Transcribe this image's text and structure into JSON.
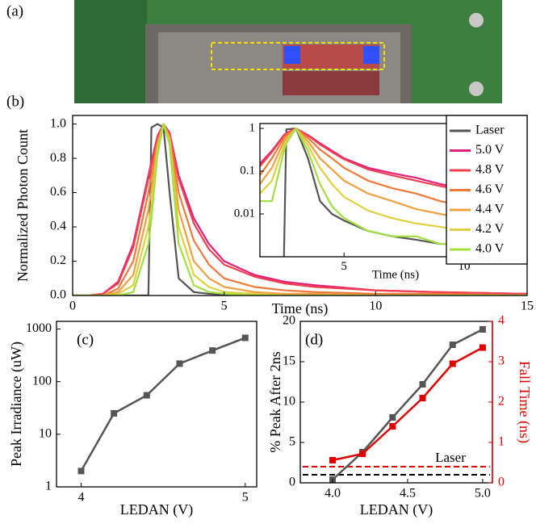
{
  "photo": {
    "panel_label": "(a)"
  },
  "chart_data": [
    {
      "type": "line",
      "panel_label": "(b)",
      "xlabel": "Time (ns)",
      "ylabel": "Normalized Photon Count",
      "xlim": [
        0,
        15
      ],
      "xticks": [
        0,
        5,
        10,
        15
      ],
      "ylim": [
        0,
        1.05
      ],
      "yticks": [
        {
          "value": 0,
          "label": "0.0"
        },
        {
          "value": 0.2,
          "label": "0.2"
        },
        {
          "value": 0.4,
          "label": "0.4"
        },
        {
          "value": 0.6,
          "label": "0.6"
        },
        {
          "value": 0.8,
          "label": "0.8"
        },
        {
          "value": 1,
          "label": "1.0"
        }
      ],
      "legend": "upper right",
      "x": [
        0,
        0.5,
        1,
        1.5,
        2,
        2.5,
        2.6,
        2.8,
        3,
        3.2,
        3.5,
        4,
        4.5,
        5,
        6,
        7,
        8,
        10,
        12,
        15
      ],
      "series": [
        {
          "name": "Laser",
          "color": "#555555",
          "values": [
            0,
            0,
            0,
            0,
            0,
            0,
            0.98,
            1.0,
            0.98,
            0.6,
            0.1,
            0.02,
            0.01,
            0.005,
            0,
            0,
            0,
            0,
            0,
            0
          ]
        },
        {
          "name": "5.0 V",
          "color": "#e0207a",
          "values": [
            0,
            0,
            0.01,
            0.08,
            0.3,
            0.7,
            0.78,
            0.93,
            1.0,
            0.95,
            0.7,
            0.45,
            0.3,
            0.2,
            0.12,
            0.08,
            0.06,
            0.03,
            0.02,
            0.01
          ]
        },
        {
          "name": "4.8 V",
          "color": "#f04050",
          "values": [
            0,
            0,
            0.01,
            0.07,
            0.28,
            0.68,
            0.76,
            0.92,
            1.0,
            0.94,
            0.68,
            0.42,
            0.27,
            0.18,
            0.11,
            0.07,
            0.05,
            0.03,
            0.02,
            0.01
          ]
        },
        {
          "name": "4.6 V",
          "color": "#f07838",
          "values": [
            0,
            0,
            0,
            0.04,
            0.2,
            0.6,
            0.7,
            0.9,
            1.0,
            0.93,
            0.6,
            0.32,
            0.18,
            0.1,
            0.05,
            0.03,
            0.02,
            0.01,
            0.01,
            0
          ]
        },
        {
          "name": "4.4 V",
          "color": "#f0a040",
          "values": [
            0,
            0,
            0,
            0.02,
            0.12,
            0.5,
            0.62,
            0.88,
            1.0,
            0.92,
            0.5,
            0.2,
            0.1,
            0.05,
            0.02,
            0.01,
            0.01,
            0,
            0,
            0
          ]
        },
        {
          "name": "4.2 V",
          "color": "#e0d040",
          "values": [
            0,
            0,
            0,
            0.01,
            0.06,
            0.4,
            0.52,
            0.85,
            1.0,
            0.9,
            0.4,
            0.12,
            0.05,
            0.02,
            0.01,
            0,
            0,
            0,
            0,
            0
          ]
        },
        {
          "name": "4.0 V",
          "color": "#a0e040",
          "values": [
            0,
            0,
            0,
            0,
            0.02,
            0.3,
            0.45,
            0.82,
            1.0,
            0.88,
            0.3,
            0.06,
            0.02,
            0.01,
            0,
            0,
            0,
            0,
            0,
            0
          ]
        }
      ]
    },
    {
      "type": "line",
      "xlabel": "Time (ns)",
      "xlim": [
        1.5,
        10
      ],
      "xticks": [
        5,
        10
      ],
      "yscale": "log",
      "ylim": [
        0.001,
        1.3
      ],
      "yticks": [
        0.01,
        0.1,
        1
      ],
      "x": [
        1.5,
        2,
        2.5,
        2.6,
        3,
        3.5,
        4,
        4.5,
        5,
        6,
        7,
        8,
        9,
        10
      ],
      "series": [
        {
          "color": "#555555",
          "values": [
            null,
            null,
            0.001,
            0.95,
            1.0,
            0.2,
            0.02,
            0.01,
            0.007,
            0.004,
            0.003,
            0.0025,
            0.002,
            0.002
          ]
        },
        {
          "color": "#e0207a",
          "values": [
            0.15,
            0.3,
            0.7,
            0.78,
            1.0,
            0.7,
            0.45,
            0.3,
            0.2,
            0.12,
            0.09,
            0.07,
            0.05,
            0.04
          ]
        },
        {
          "color": "#f04050",
          "values": [
            0.13,
            0.28,
            0.68,
            0.76,
            1.0,
            0.68,
            0.42,
            0.28,
            0.19,
            0.11,
            0.08,
            0.06,
            0.045,
            0.035
          ]
        },
        {
          "color": "#f07838",
          "values": [
            0.08,
            0.2,
            0.6,
            0.7,
            1.0,
            0.6,
            0.32,
            0.2,
            0.12,
            0.06,
            0.04,
            0.03,
            0.02,
            0.015
          ]
        },
        {
          "color": "#f0a040",
          "values": [
            0.05,
            0.12,
            0.5,
            0.62,
            1.0,
            0.5,
            0.2,
            0.11,
            0.06,
            0.03,
            0.02,
            0.013,
            0.01,
            0.008
          ]
        },
        {
          "color": "#e0d040",
          "values": [
            0.03,
            0.06,
            0.4,
            0.52,
            1.0,
            0.4,
            0.12,
            0.05,
            0.025,
            0.012,
            0.008,
            0.006,
            0.005,
            0.004
          ]
        },
        {
          "color": "#a0e040",
          "values": [
            0.02,
            0.02,
            0.3,
            0.45,
            1.0,
            0.3,
            0.05,
            0.015,
            0.008,
            0.004,
            0.003,
            0.003,
            0.002,
            0.002
          ]
        }
      ]
    },
    {
      "type": "line",
      "panel_label": "(c)",
      "xlabel": "LEDAN (V)",
      "ylabel": "Peak Irradiance (uW)",
      "xlim": [
        3.85,
        5.07
      ],
      "xticks": [
        4,
        5
      ],
      "yscale": "log",
      "ylim": [
        1,
        1400
      ],
      "yticks": [
        1,
        10,
        100,
        1000
      ],
      "markers": "square",
      "x": [
        4.0,
        4.2,
        4.4,
        4.6,
        4.8,
        5.0
      ],
      "series": [
        {
          "color": "#555555",
          "values": [
            2,
            25,
            55,
            220,
            390,
            680
          ]
        }
      ]
    },
    {
      "type": "line",
      "panel_label": "(d)",
      "xlabel": "LEDAN (V)",
      "ylabel": "% Peak After 2ns",
      "y2label": "Fall Time (ns)",
      "xlim": [
        3.785,
        5.065
      ],
      "xticks": [
        {
          "value": 4,
          "label": "4.0"
        },
        {
          "value": 4.5,
          "label": "4.5"
        },
        {
          "value": 5,
          "label": "5.0"
        }
      ],
      "ylim": [
        0,
        20
      ],
      "yticks": [
        0,
        5,
        10,
        15,
        20
      ],
      "y2lim": [
        0,
        4
      ],
      "y2ticks": [
        0,
        1,
        2,
        3,
        4
      ],
      "y2_color": "#e00000",
      "markers": "square",
      "x": [
        4.0,
        4.2,
        4.4,
        4.6,
        4.8,
        5.0
      ],
      "series": [
        {
          "color": "#555555",
          "values": [
            0.4,
            3.8,
            8.1,
            12.2,
            17.1,
            19.0
          ]
        },
        {
          "color": "#e00000",
          "axis": "y2",
          "values": [
            0.56,
            0.72,
            1.4,
            2.1,
            2.95,
            3.35
          ]
        }
      ],
      "reference_lines": [
        {
          "value": 1,
          "color": "#000000"
        },
        {
          "value": 0.4,
          "axis": "y2",
          "color": "#e00000"
        }
      ],
      "annotation": "Laser"
    }
  ]
}
